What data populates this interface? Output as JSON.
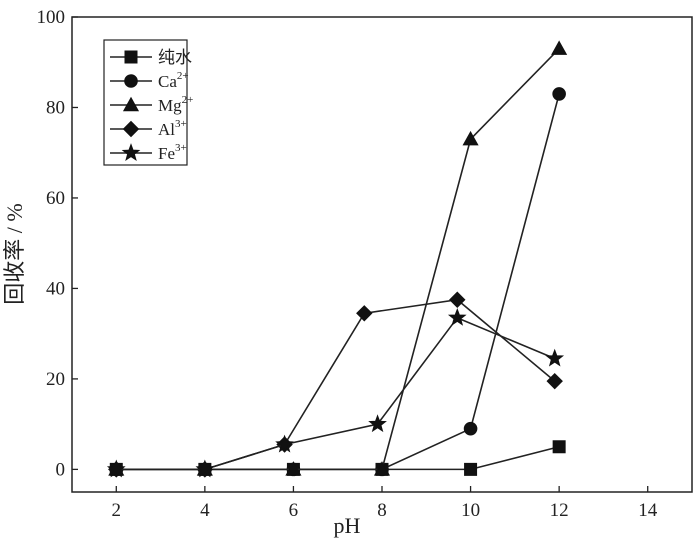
{
  "chart_data": {
    "type": "line",
    "xlabel": "pH",
    "ylabel": "回收率 / %",
    "xlim": [
      1,
      15
    ],
    "ylim": [
      -5,
      100
    ],
    "xticks": [
      2,
      4,
      6,
      8,
      10,
      12,
      14
    ],
    "yticks": [
      0,
      20,
      40,
      60,
      80,
      100
    ],
    "grid": false,
    "legend_position": "top-left",
    "series": [
      {
        "name": "纯水",
        "name_base": "纯水",
        "name_sup": "",
        "marker": "square",
        "x": [
          2,
          4,
          6,
          8,
          10,
          12
        ],
        "y": [
          0,
          0,
          0,
          0,
          0,
          5
        ]
      },
      {
        "name": "Ca2+",
        "name_base": "Ca",
        "name_sup": "2+",
        "marker": "circle",
        "x": [
          2,
          4,
          6,
          8,
          10,
          12
        ],
        "y": [
          0,
          0,
          0,
          0,
          9,
          83
        ]
      },
      {
        "name": "Mg2+",
        "name_base": "Mg",
        "name_sup": "2+",
        "marker": "triangle",
        "x": [
          2,
          4,
          6,
          8,
          10,
          12
        ],
        "y": [
          0,
          0,
          0,
          0,
          73,
          93
        ]
      },
      {
        "name": "Al3+",
        "name_base": "Al",
        "name_sup": "3+",
        "marker": "diamond",
        "x": [
          2,
          4,
          5.8,
          7.6,
          9.7,
          11.9
        ],
        "y": [
          0,
          0,
          5.5,
          34.5,
          37.5,
          19.5
        ]
      },
      {
        "name": "Fe3+",
        "name_base": "Fe",
        "name_sup": "3+",
        "marker": "star",
        "x": [
          2,
          4,
          5.8,
          7.9,
          9.7,
          11.9
        ],
        "y": [
          0,
          0,
          5.5,
          10,
          33.5,
          24.5
        ]
      }
    ]
  }
}
